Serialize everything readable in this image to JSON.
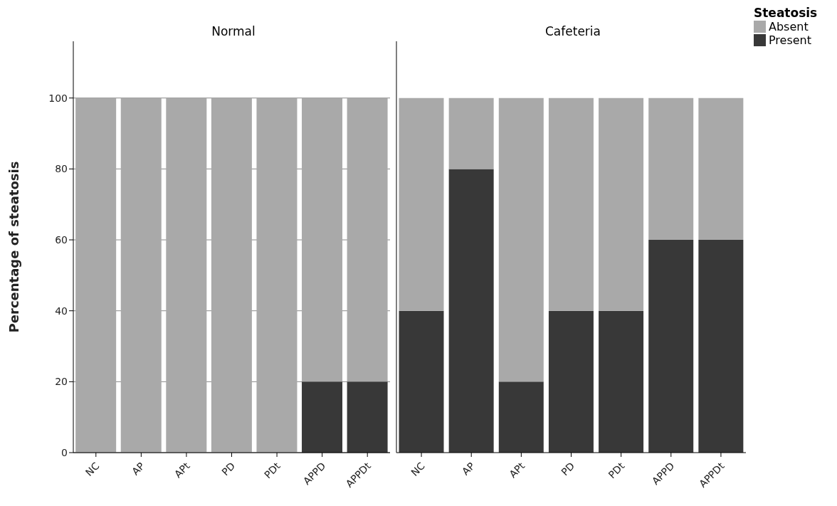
{
  "chart_data": [
    {
      "type": "bar",
      "title": "Normal",
      "ylabel": "Percentage of steatosis",
      "categories": [
        "NC",
        "AP",
        "APt",
        "PD",
        "PDt",
        "APPD",
        "APPDt"
      ],
      "stacked": true,
      "ylim": [
        0,
        116
      ],
      "yticks": [
        0,
        20,
        40,
        60,
        80,
        100
      ],
      "grid": "y",
      "series": [
        {
          "color": "#383838",
          "values": [
            0,
            0,
            0,
            0,
            0,
            20,
            20
          ]
        },
        {
          "color": "#a9a9a9",
          "values": [
            100,
            100,
            100,
            100,
            100,
            80,
            80
          ]
        }
      ]
    },
    {
      "type": "bar",
      "title": "Cafeteria",
      "categories": [
        "NC",
        "AP",
        "APt",
        "PD",
        "PDt",
        "APPD",
        "APPDt"
      ],
      "stacked": true,
      "ylim": [
        0,
        116
      ],
      "yticks": [
        0,
        20,
        40,
        60,
        80,
        100
      ],
      "grid": "y",
      "tick_labels": "x",
      "legend": "top right",
      "legend_title": "Steatosis",
      "series": [
        {
          "name": "Present",
          "color": "#383838",
          "values": [
            40,
            80,
            20,
            40,
            40,
            60,
            60
          ]
        },
        {
          "name": "Absent",
          "color": "#a9a9a9",
          "values": [
            60,
            20,
            80,
            60,
            60,
            40,
            40
          ]
        }
      ]
    }
  ]
}
